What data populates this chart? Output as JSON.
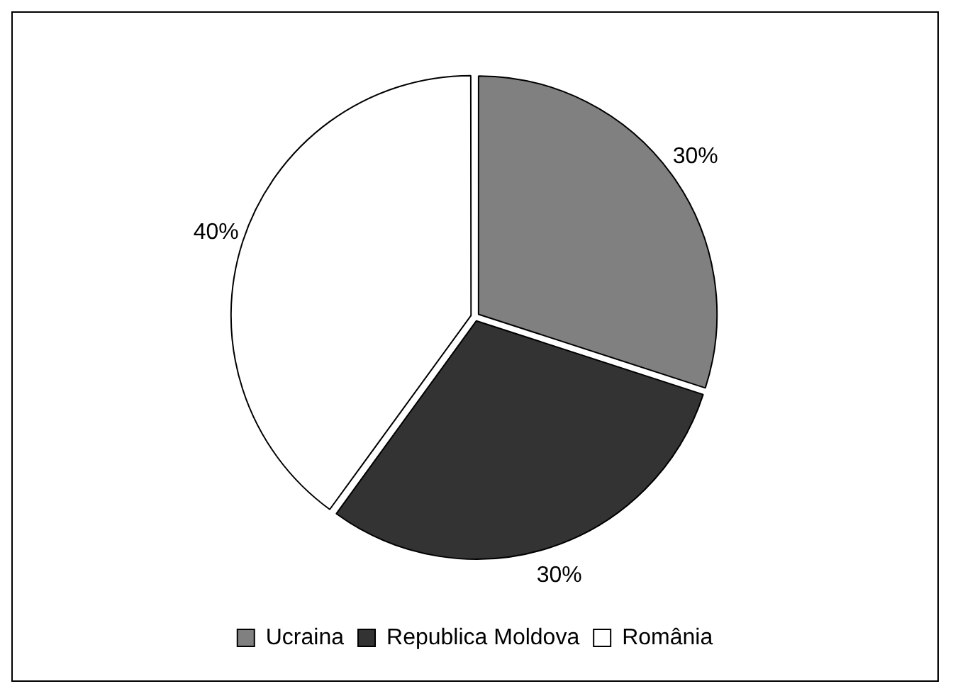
{
  "chart_data": {
    "type": "pie",
    "categories": [
      "Ucraina",
      "Republica Moldova",
      "România"
    ],
    "values": [
      30,
      30,
      40
    ],
    "colors": [
      "#808080",
      "#333333",
      "#ffffff"
    ],
    "value_labels": [
      "30%",
      "30%",
      "40%"
    ],
    "legend": "bottom"
  }
}
